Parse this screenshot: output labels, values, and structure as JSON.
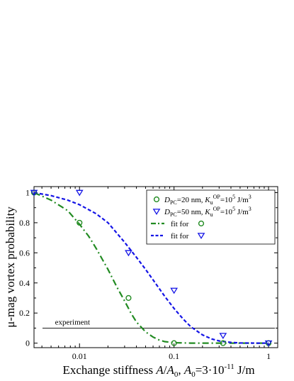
{
  "chart_data": {
    "type": "scatter",
    "x_scale": "log",
    "xlim": [
      0.0033,
      1.25
    ],
    "ylim": [
      -0.03,
      1.04
    ],
    "x_ticks": [
      0.01,
      0.1,
      1
    ],
    "x_tick_labels": [
      "0.01",
      "0.1",
      "1"
    ],
    "y_ticks": [
      0,
      0.2,
      0.4,
      0.6,
      0.8,
      1
    ],
    "y_tick_labels": [
      "0",
      "0.2",
      "0.4",
      "0.6",
      "0.8",
      "1"
    ],
    "xlabel_parts": [
      "Exchange stiffness ",
      "A",
      "/",
      "A",
      "0",
      ", ",
      "A",
      "0",
      "=3·10",
      "-11",
      " J/m"
    ],
    "ylabel": "μ-mag vortex probability",
    "series": [
      {
        "name": "DPC=20 nm, KuOP=105 J/m3",
        "label_parts": [
          "D",
          "PC",
          "=20 nm, ",
          "K",
          "u",
          "OP",
          "=10",
          "5",
          " J/m",
          "3"
        ],
        "marker": "circle",
        "color": "#228B22",
        "x": [
          0.0033,
          0.01,
          0.033,
          0.1,
          0.33,
          1
        ],
        "y": [
          1.0,
          0.8,
          0.3,
          0.0,
          0.0,
          0.0
        ]
      },
      {
        "name": "DPC=50 nm, KuOP=105 J/m3",
        "label_parts": [
          "D",
          "PC",
          "=50 nm, ",
          "K",
          "u",
          "OP",
          "=10",
          "5",
          " J/m",
          "3"
        ],
        "marker": "triangle-down",
        "color": "#1414E6",
        "x": [
          0.0033,
          0.01,
          0.033,
          0.1,
          0.33,
          1
        ],
        "y": [
          1.0,
          1.0,
          0.6,
          0.35,
          0.05,
          0.0
        ]
      }
    ],
    "fits": [
      {
        "name": "fit for",
        "marker": "circle",
        "color": "#228B22",
        "style": "dash-dot",
        "x": [
          0.0033,
          0.005,
          0.0075,
          0.01,
          0.0125,
          0.015,
          0.02,
          0.025,
          0.03,
          0.035,
          0.04,
          0.05,
          0.06,
          0.07,
          0.08,
          0.1,
          0.15,
          0.2,
          0.3,
          0.5,
          0.75,
          1
        ],
        "y": [
          1.0,
          0.95,
          0.88,
          0.79,
          0.71,
          0.63,
          0.49,
          0.37,
          0.28,
          0.2,
          0.14,
          0.075,
          0.04,
          0.02,
          0.01,
          0.003,
          0.0,
          0.0,
          0.0,
          0.0,
          0.0,
          0.0
        ]
      },
      {
        "name": "fit for",
        "marker": "triangle-down",
        "color": "#1414E6",
        "style": "dashed",
        "x": [
          0.0033,
          0.005,
          0.0075,
          0.01,
          0.015,
          0.02,
          0.03,
          0.04,
          0.05,
          0.06,
          0.08,
          0.1,
          0.125,
          0.15,
          0.2,
          0.25,
          0.3,
          0.4,
          0.5,
          0.75,
          1
        ],
        "y": [
          1.0,
          0.98,
          0.95,
          0.92,
          0.86,
          0.8,
          0.67,
          0.57,
          0.49,
          0.42,
          0.31,
          0.23,
          0.16,
          0.11,
          0.055,
          0.028,
          0.015,
          0.005,
          0.001,
          0.0,
          0.0
        ]
      }
    ],
    "reference_line": {
      "label": "experiment",
      "y": 0.1
    },
    "legend_position": "top-right",
    "grid": false
  }
}
